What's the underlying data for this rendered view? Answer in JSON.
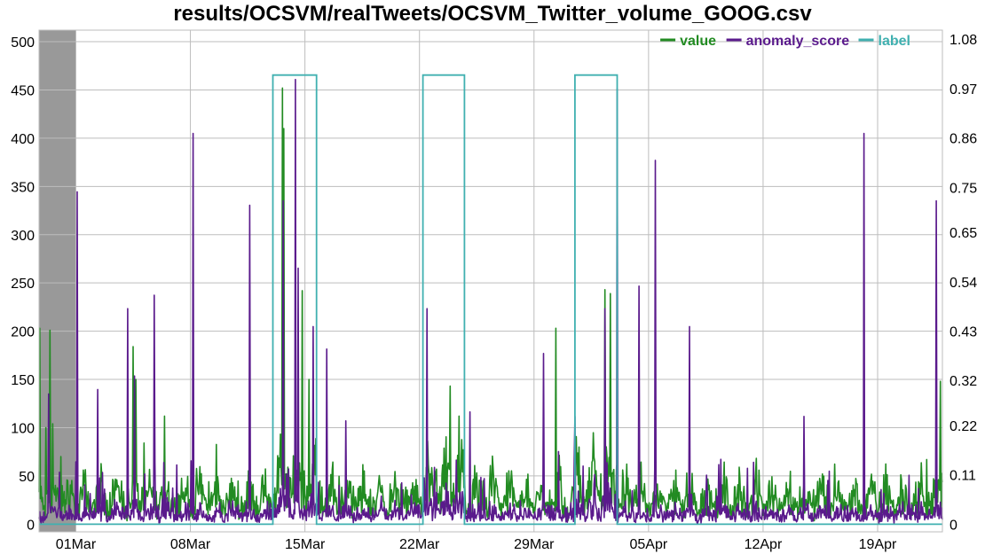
{
  "chart_data": {
    "type": "line",
    "title": "results/OCSVM/realTweets/OCSVM_Twitter_volume_GOOG.csv",
    "xlabel": "",
    "ylabel": "",
    "x_range": [
      "2015-02-26T18:00",
      "2015-04-22T23:00"
    ],
    "x_ticks": [
      {
        "date": "2015-03-01",
        "label": "01Mar"
      },
      {
        "date": "2015-03-08",
        "label": "08Mar"
      },
      {
        "date": "2015-03-15",
        "label": "15Mar"
      },
      {
        "date": "2015-03-22",
        "label": "22Mar"
      },
      {
        "date": "2015-03-29",
        "label": "29Mar"
      },
      {
        "date": "2015-04-05",
        "label": "05Apr"
      },
      {
        "date": "2015-04-12",
        "label": "12Apr"
      },
      {
        "date": "2015-04-19",
        "label": "19Apr"
      }
    ],
    "y_left": {
      "range": [
        -8,
        512
      ],
      "ticks": [
        0,
        50,
        100,
        150,
        200,
        250,
        300,
        350,
        400,
        450,
        500
      ]
    },
    "y_right": {
      "range": [
        -0.017,
        1.1
      ],
      "ticks": [
        "0",
        "0.11",
        "0.22",
        "0.32",
        "0.43",
        "0.54",
        "0.65",
        "0.75",
        "0.86",
        "0.97",
        "1.08"
      ]
    },
    "grid": true,
    "legend": {
      "placement": "top-right"
    },
    "probation_region": {
      "start": "2015-02-26T18:00",
      "end": "2015-03-01T00:00",
      "color": "#999999"
    },
    "colors": {
      "value": "#228B22",
      "anomaly_score": "#5A1A8C",
      "label": "#40B0B0"
    },
    "series": [
      {
        "name": "value",
        "axis": "left",
        "baseline": 15,
        "peaks": [
          [
            "2015-02-26T19:00",
            203
          ],
          [
            "2015-02-27T04:00",
            100
          ],
          [
            "2015-02-27T10:00",
            201
          ],
          [
            "2015-02-27T14:00",
            104
          ],
          [
            "2015-02-28T02:00",
            70
          ],
          [
            "2015-03-04T12:00",
            184
          ],
          [
            "2015-03-04T16:00",
            150
          ],
          [
            "2015-03-06T10:00",
            112
          ],
          [
            "2015-03-13T15:00",
            452
          ],
          [
            "2015-03-13T17:00",
            410
          ],
          [
            "2015-03-14T20:00",
            242
          ],
          [
            "2015-03-15T06:00",
            150
          ],
          [
            "2015-03-23T21:00",
            143
          ],
          [
            "2015-03-24T10:00",
            112
          ],
          [
            "2015-03-30T08:00",
            203
          ],
          [
            "2015-04-02T08:00",
            243
          ],
          [
            "2015-04-02T16:00",
            239
          ],
          [
            "2015-04-22T20:00",
            148
          ]
        ]
      },
      {
        "name": "anomaly_score",
        "axis": "right",
        "baseline": 0.01,
        "peaks": [
          [
            "2015-02-27T08:00",
            0.29
          ],
          [
            "2015-03-01T02:00",
            0.74
          ],
          [
            "2015-03-02T08:00",
            0.3
          ],
          [
            "2015-03-04T04:00",
            0.48
          ],
          [
            "2015-03-04T14:00",
            0.33
          ],
          [
            "2015-03-05T19:00",
            0.51
          ],
          [
            "2015-03-08T04:00",
            0.87
          ],
          [
            "2015-03-11T15:00",
            0.71
          ],
          [
            "2015-03-13T16:00",
            0.72
          ],
          [
            "2015-03-14T10:00",
            0.99
          ],
          [
            "2015-03-14T14:00",
            0.57
          ],
          [
            "2015-03-15T12:00",
            0.44
          ],
          [
            "2015-03-16T08:00",
            0.39
          ],
          [
            "2015-03-17T12:00",
            0.23
          ],
          [
            "2015-03-22T11:00",
            0.48
          ],
          [
            "2015-03-25T02:00",
            0.25
          ],
          [
            "2015-03-29T14:00",
            0.38
          ],
          [
            "2015-03-31T12:00",
            0.24
          ],
          [
            "2015-04-02T08:00",
            0.48
          ],
          [
            "2015-04-03T02:00",
            0.97
          ],
          [
            "2015-04-04T10:00",
            0.53
          ],
          [
            "2015-04-05T10:00",
            0.81
          ],
          [
            "2015-04-07T12:00",
            0.44
          ],
          [
            "2015-04-14T12:00",
            0.24
          ],
          [
            "2015-04-18T04:00",
            0.87
          ],
          [
            "2015-04-22T14:00",
            0.72
          ]
        ]
      },
      {
        "name": "label",
        "axis": "right",
        "windows": [
          [
            "2015-03-13T01:00",
            "2015-03-15T17:00"
          ],
          [
            "2015-03-22T05:00",
            "2015-03-24T18:00"
          ],
          [
            "2015-03-31T12:00",
            "2015-04-03T02:00"
          ]
        ],
        "window_value": 1.0
      }
    ]
  }
}
